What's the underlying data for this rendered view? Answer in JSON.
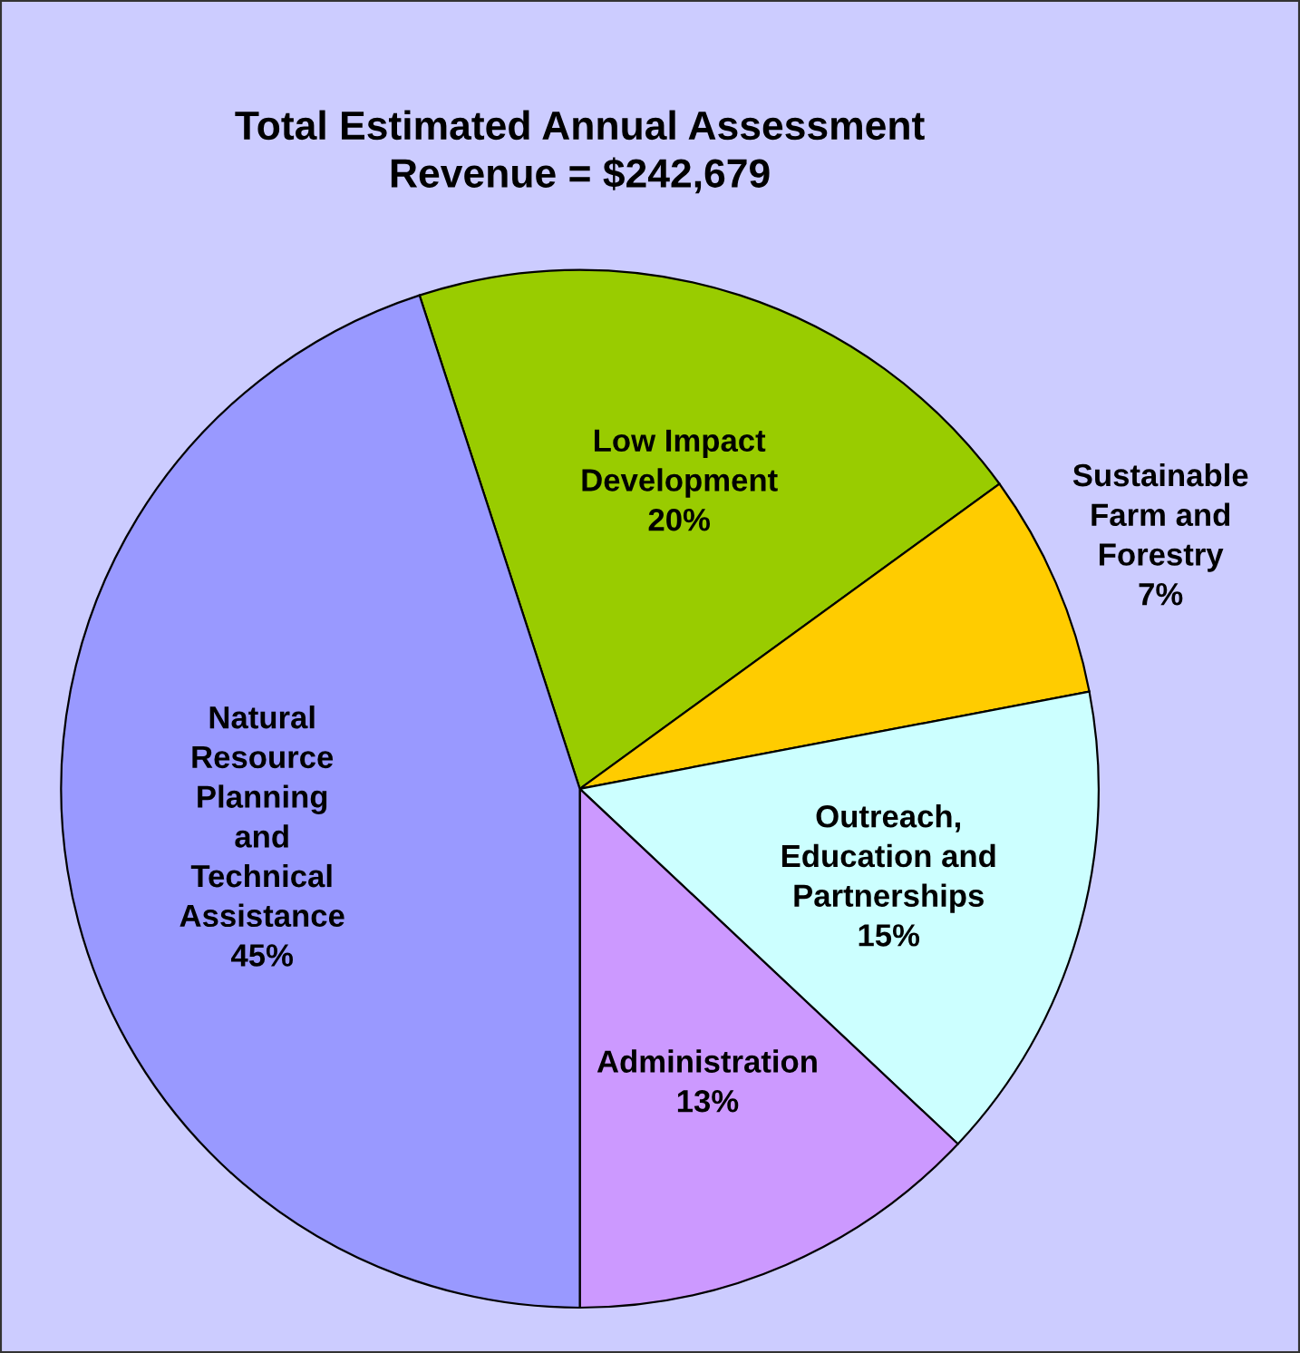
{
  "chart_data": {
    "type": "pie",
    "title": "Total Estimated Annual Assessment\nRevenue = $242,679",
    "categories": [
      "Low Impact\nDevelopment",
      "Sustainable\nFarm and\nForestry",
      "Outreach,\nEducation and\nPartnerships",
      "Administration",
      "Natural\nResource\nPlanning\nand\nTechnical\nAssistance"
    ],
    "values": [
      20,
      7,
      15,
      13,
      45
    ],
    "colors": [
      "#99cc00",
      "#ffcc00",
      "#ccffff",
      "#cc99ff",
      "#9999ff"
    ],
    "value_labels": [
      "20%",
      "7%",
      "15%",
      "13%",
      "45%"
    ],
    "legend": false
  }
}
